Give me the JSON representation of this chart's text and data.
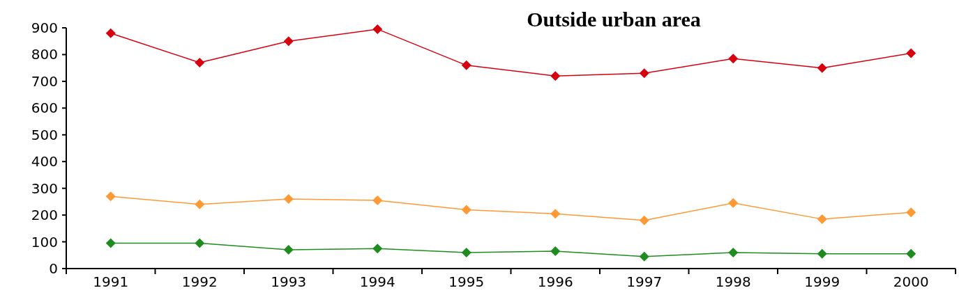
{
  "chart_data": {
    "type": "line",
    "title": "Outside urban area",
    "categories": [
      "1991",
      "1992",
      "1993",
      "1994",
      "1995",
      "1996",
      "1997",
      "1998",
      "1999",
      "2000"
    ],
    "series": [
      {
        "color": "#d7000f",
        "values": [
          880,
          770,
          850,
          895,
          760,
          720,
          730,
          785,
          750,
          805
        ]
      },
      {
        "color": "#ff9933",
        "values": [
          270,
          240,
          260,
          255,
          220,
          205,
          180,
          245,
          185,
          210
        ]
      },
      {
        "color": "#1e8c1e",
        "values": [
          95,
          95,
          70,
          75,
          60,
          65,
          45,
          60,
          55,
          55
        ]
      }
    ],
    "ylim": [
      0,
      900
    ],
    "yticks": [
      0,
      100,
      200,
      300,
      400,
      500,
      600,
      700,
      800,
      900
    ],
    "grid": false,
    "marker": "diamond",
    "line_style": "solid"
  }
}
